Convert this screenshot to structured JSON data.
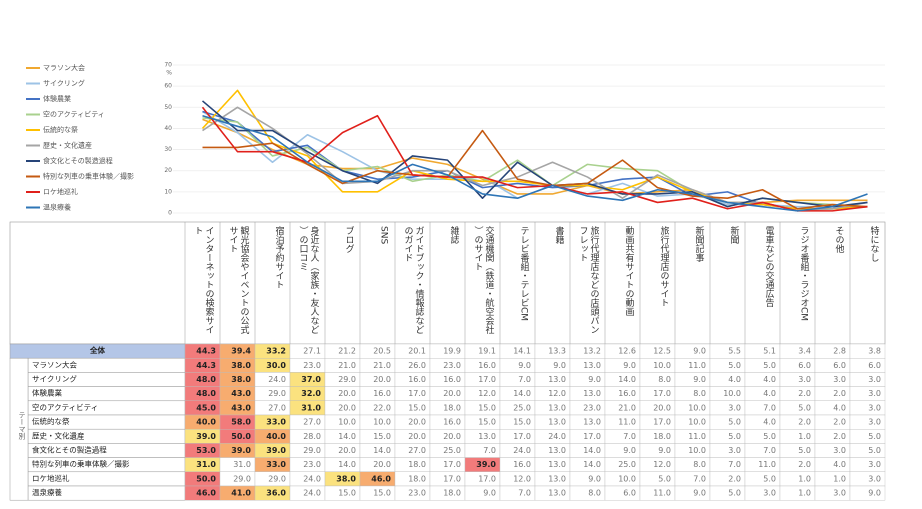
{
  "chart_data": {
    "type": "line",
    "categories": [
      "インターネットの検索サイト",
      "観光協会やイベントの公式サイト",
      "宿泊予約サイト",
      "身近な人（家族・友人など）の口コミ",
      "ブログ",
      "SNS",
      "ガイドブック・情報誌などのガイド",
      "雑誌",
      "交通機関（鉄道・航空会社）のサイト",
      "テレビ番組・テレビCM",
      "書籍",
      "旅行代理店などの店頭パンフレット",
      "動画共有サイトの動画",
      "旅行代理店のサイト",
      "新聞記事",
      "新聞",
      "電車などの交通広告",
      "ラジオ番組・ラジオCM",
      "その他",
      "特になし"
    ],
    "ylim": [
      0,
      70
    ],
    "yticks": [
      0,
      10,
      20,
      30,
      40,
      50,
      60,
      70
    ],
    "y_unit": "%",
    "grid": true,
    "row_group_label": "テーマ別",
    "highlight_colors": [
      "#f27b7b",
      "#f7ac6f",
      "#fbe27f"
    ],
    "overall": {
      "name": "全体",
      "values": [
        44.3,
        39.4,
        33.2,
        27.1,
        21.2,
        20.5,
        20.1,
        19.9,
        19.1,
        14.1,
        13.3,
        13.2,
        12.6,
        12.5,
        9,
        5.5,
        5.1,
        3.4,
        2.8,
        3.8
      ],
      "value_labels": [
        "44.3",
        "39.4",
        "33.2",
        "27.1",
        "21.2",
        "20.5",
        "20.1",
        "19.9",
        "19.1",
        "14.1",
        "13.3",
        "13.2",
        "12.6",
        "12.5",
        "9.0",
        "5.5",
        "5.1",
        "3.4",
        "2.8",
        "3.8"
      ]
    },
    "series": [
      {
        "name": "マラソン大会",
        "color": "#f0a830",
        "values": [
          44.3,
          38,
          30,
          23,
          21,
          21,
          26,
          23,
          16,
          9,
          9,
          13,
          9,
          10,
          11,
          5,
          5,
          6,
          6,
          6
        ],
        "value_labels": [
          "44.3",
          "38.0",
          "30.0",
          "23.0",
          "21.0",
          "21.0",
          "26.0",
          "23.0",
          "16.0",
          "9.0",
          "9.0",
          "13.0",
          "9.0",
          "10.0",
          "11.0",
          "5.0",
          "5.0",
          "6.0",
          "6.0",
          "6.0"
        ]
      },
      {
        "name": "サイクリング",
        "color": "#9dc3e6",
        "values": [
          48,
          38,
          24,
          37,
          29,
          20,
          16,
          16,
          17,
          7,
          13,
          9,
          14,
          8,
          9,
          4,
          4,
          3,
          3,
          3
        ],
        "value_labels": [
          "48.0",
          "38.0",
          "24.0",
          "37.0",
          "29.0",
          "20.0",
          "16.0",
          "16.0",
          "17.0",
          "7.0",
          "13.0",
          "9.0",
          "14.0",
          "8.0",
          "9.0",
          "4.0",
          "4.0",
          "3.0",
          "3.0",
          "3.0"
        ]
      },
      {
        "name": "体験農業",
        "color": "#4472c4",
        "values": [
          48,
          43,
          29,
          32,
          20,
          16,
          17,
          20,
          12,
          14,
          12,
          13,
          16,
          17,
          8,
          10,
          4,
          2,
          2,
          3
        ],
        "value_labels": [
          "48.0",
          "43.0",
          "29.0",
          "32.0",
          "20.0",
          "16.0",
          "17.0",
          "20.0",
          "12.0",
          "14.0",
          "12.0",
          "13.0",
          "16.0",
          "17.0",
          "8.0",
          "10.0",
          "4.0",
          "2.0",
          "2.0",
          "3.0"
        ]
      },
      {
        "name": "空のアクティビティ",
        "color": "#a9d18e",
        "values": [
          45,
          43,
          27,
          31,
          20,
          22,
          15,
          18,
          15,
          25,
          13,
          23,
          21,
          20,
          10,
          3,
          7,
          5,
          4,
          3
        ],
        "value_labels": [
          "45.0",
          "43.0",
          "27.0",
          "31.0",
          "20.0",
          "22.0",
          "15.0",
          "18.0",
          "15.0",
          "25.0",
          "13.0",
          "23.0",
          "21.0",
          "20.0",
          "10.0",
          "3.0",
          "7.0",
          "5.0",
          "4.0",
          "3.0"
        ]
      },
      {
        "name": "伝統的な祭",
        "color": "#ffc000",
        "values": [
          40,
          58,
          33,
          27,
          10,
          10,
          20,
          16,
          15,
          15,
          13,
          13,
          11,
          17,
          10,
          5,
          4,
          2,
          2,
          3
        ],
        "value_labels": [
          "40.0",
          "58.0",
          "33.0",
          "27.0",
          "10.0",
          "10.0",
          "20.0",
          "16.0",
          "15.0",
          "15.0",
          "13.0",
          "13.0",
          "11.0",
          "17.0",
          "10.0",
          "5.0",
          "4.0",
          "2.0",
          "2.0",
          "3.0"
        ]
      },
      {
        "name": "歴史・文化遺産",
        "color": "#a5a5a5",
        "values": [
          39,
          50,
          40,
          28,
          14,
          15,
          20,
          20,
          13,
          17,
          24,
          17,
          7,
          18,
          11,
          5,
          5,
          1,
          2,
          5
        ],
        "value_labels": [
          "39.0",
          "50.0",
          "40.0",
          "28.0",
          "14.0",
          "15.0",
          "20.0",
          "20.0",
          "13.0",
          "17.0",
          "24.0",
          "17.0",
          "7.0",
          "18.0",
          "11.0",
          "5.0",
          "5.0",
          "1.0",
          "2.0",
          "5.0"
        ]
      },
      {
        "name": "食文化とその製造過程",
        "color": "#264478",
        "values": [
          53,
          39,
          39,
          29,
          20,
          14,
          27,
          25,
          7,
          24,
          13,
          14,
          9,
          9,
          10,
          3,
          7,
          5,
          3,
          5
        ],
        "value_labels": [
          "53.0",
          "39.0",
          "39.0",
          "29.0",
          "20.0",
          "14.0",
          "27.0",
          "25.0",
          "7.0",
          "24.0",
          "13.0",
          "14.0",
          "9.0",
          "9.0",
          "10.0",
          "3.0",
          "7.0",
          "5.0",
          "3.0",
          "5.0"
        ]
      },
      {
        "name": "特別な列車の乗車体験／撮影",
        "color": "#c55a11",
        "values": [
          31,
          31,
          33,
          23,
          14,
          20,
          18,
          17,
          39,
          16,
          13,
          14,
          25,
          12,
          8,
          7,
          11,
          2,
          4,
          3
        ],
        "value_labels": [
          "31.0",
          "31.0",
          "33.0",
          "23.0",
          "14.0",
          "20.0",
          "18.0",
          "17.0",
          "39.0",
          "16.0",
          "13.0",
          "14.0",
          "25.0",
          "12.0",
          "8.0",
          "7.0",
          "11.0",
          "2.0",
          "4.0",
          "3.0"
        ]
      },
      {
        "name": "ロケ地巡礼",
        "color": "#e0201b",
        "values": [
          50,
          29,
          29,
          24,
          38,
          46,
          18,
          17,
          17,
          12,
          13,
          9,
          10,
          5,
          7,
          2,
          5,
          1,
          1,
          3
        ],
        "value_labels": [
          "50.0",
          "29.0",
          "29.0",
          "24.0",
          "38.0",
          "46.0",
          "18.0",
          "17.0",
          "17.0",
          "12.0",
          "13.0",
          "9.0",
          "10.0",
          "5.0",
          "7.0",
          "2.0",
          "5.0",
          "1.0",
          "1.0",
          "3.0"
        ]
      },
      {
        "name": "温泉療養",
        "color": "#2e75b6",
        "values": [
          46,
          41,
          36,
          24,
          15,
          15,
          23,
          18,
          9,
          7,
          13,
          8,
          6,
          11,
          9,
          5,
          3,
          1,
          3,
          9
        ],
        "value_labels": [
          "46.0",
          "41.0",
          "36.0",
          "24.0",
          "15.0",
          "15.0",
          "23.0",
          "18.0",
          "9.0",
          "7.0",
          "13.0",
          "8.0",
          "6.0",
          "11.0",
          "9.0",
          "5.0",
          "3.0",
          "1.0",
          "3.0",
          "9.0"
        ]
      }
    ]
  }
}
